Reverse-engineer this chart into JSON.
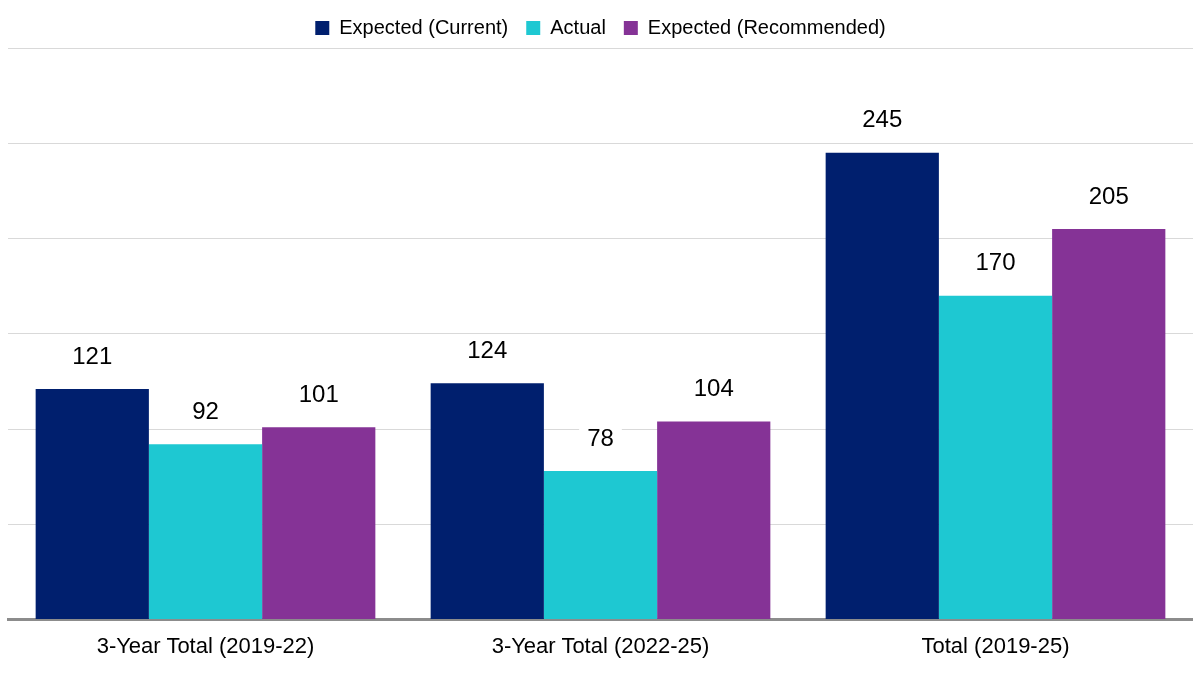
{
  "chart_data": {
    "type": "bar",
    "categories": [
      "3-Year Total (2019-22)",
      "3-Year Total (2022-25)",
      "Total (2019-25)"
    ],
    "series": [
      {
        "name": "Expected (Current)",
        "color": "#001f6e",
        "values": [
          121,
          124,
          245
        ]
      },
      {
        "name": "Actual",
        "color": "#1ec8d2",
        "values": [
          92,
          78,
          170
        ]
      },
      {
        "name": "Expected (Recommended)",
        "color": "#853396",
        "values": [
          101,
          104,
          205
        ]
      }
    ],
    "ylim": [
      0,
      300
    ],
    "yticks": [
      {
        "value": 0,
        "label": null
      },
      {
        "value": 50,
        "label": null
      },
      {
        "value": 100,
        "label": null
      },
      {
        "value": 150,
        "label": null
      },
      {
        "value": 200,
        "label": null
      },
      {
        "value": 250,
        "label": null
      },
      {
        "value": 300,
        "label": null
      }
    ],
    "grid": "y",
    "legend": "top",
    "tick_labels": "x",
    "data_labels": true
  }
}
